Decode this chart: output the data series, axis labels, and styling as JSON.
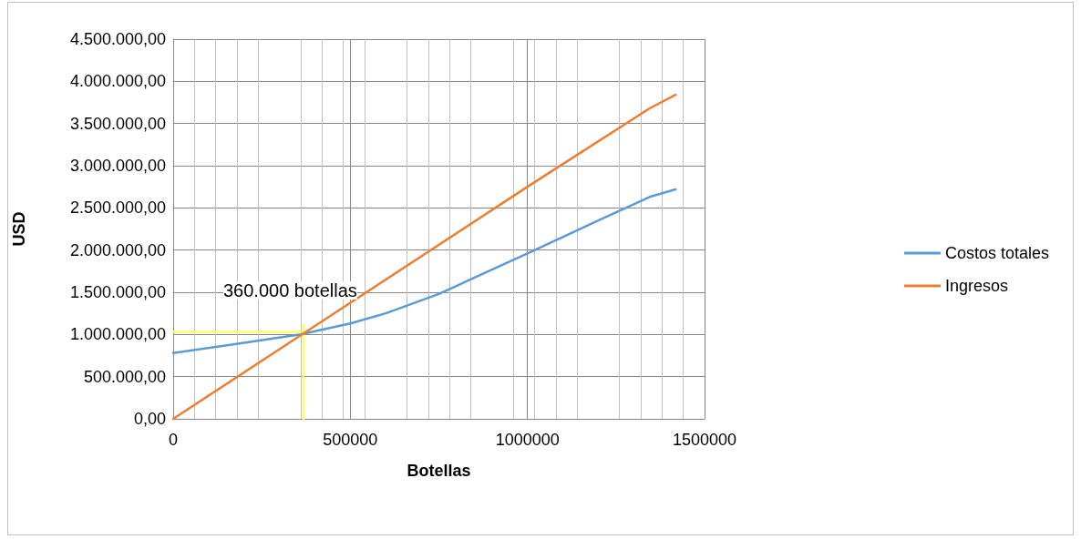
{
  "chart_data": {
    "type": "line",
    "xlabel": "Botellas",
    "ylabel": "USD",
    "xlim": [
      0,
      1500000
    ],
    "xticks": [
      0,
      500000,
      1000000,
      1500000
    ],
    "ylim": [
      0,
      4500000
    ],
    "yticks": [
      {
        "value": 0,
        "label": "0,00"
      },
      {
        "value": 500000,
        "label": "500.000,00"
      },
      {
        "value": 1000000,
        "label": "1.000.000,00"
      },
      {
        "value": 1500000,
        "label": "1.500.000,00"
      },
      {
        "value": 2000000,
        "label": "2.000.000,00"
      },
      {
        "value": 2500000,
        "label": "2.500.000,00"
      },
      {
        "value": 3000000,
        "label": "3.000.000,00"
      },
      {
        "value": 3500000,
        "label": "3.500.000,00"
      },
      {
        "value": 4000000,
        "label": "4.000.000,00"
      },
      {
        "value": 4500000,
        "label": "4.500.000,00"
      }
    ],
    "series": [
      {
        "name": "Costos totales",
        "color": "#5b9bd5",
        "x": [
          0,
          200000,
          360000,
          500000,
          600000,
          750000,
          1000000,
          1200000,
          1345000,
          1418000
        ],
        "values": [
          780000,
          900000,
          1000000,
          1130000,
          1250000,
          1480000,
          1960000,
          2350000,
          2630000,
          2720000
        ]
      },
      {
        "name": "Ingresos",
        "color": "#ed7d31",
        "x": [
          0,
          360000,
          1000000,
          1345000,
          1418000
        ],
        "values": [
          0,
          990000,
          2750000,
          3680000,
          3840000
        ]
      },
      {
        "color": "#ffff66",
        "x": [
          0,
          368000
        ],
        "values": [
          1030000,
          1030000
        ]
      },
      {
        "color": "#ffff66",
        "x": [
          368000,
          368000
        ],
        "values": [
          1120000,
          0
        ]
      }
    ],
    "annotations": [
      "360.000 botellas"
    ],
    "grid": true,
    "legend": "right",
    "marker": "none",
    "line_style": "solid"
  }
}
